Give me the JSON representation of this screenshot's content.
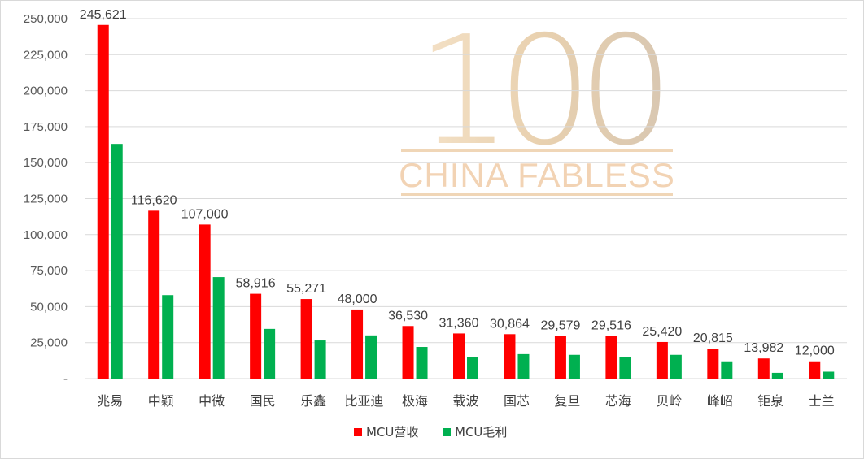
{
  "watermark": {
    "number": "100",
    "text": "CHINA FABLESS"
  },
  "colors": {
    "revenue": "#ff0000",
    "gross_profit": "#00b050",
    "grid": "#d9d9d9",
    "watermark_gold": "#e8c9a0"
  },
  "chart_data": {
    "type": "bar",
    "title": "",
    "xlabel": "",
    "ylabel": "",
    "ylim": [
      0,
      250000
    ],
    "yticks": [
      0,
      25000,
      50000,
      75000,
      100000,
      125000,
      150000,
      175000,
      200000,
      225000,
      250000
    ],
    "ytick_labels": [
      "-",
      "25,000",
      "50,000",
      "75,000",
      "100,000",
      "125,000",
      "150,000",
      "175,000",
      "200,000",
      "225,000",
      "250,000"
    ],
    "grid": true,
    "legend_position": "bottom",
    "categories": [
      "兆易",
      "中颖",
      "中微",
      "国民",
      "乐鑫",
      "比亚迪",
      "极海",
      "载波",
      "国芯",
      "复旦",
      "芯海",
      "贝岭",
      "峰岹",
      "钜泉",
      "士兰"
    ],
    "series": [
      {
        "name": "MCU营收",
        "values": [
          245621,
          116620,
          107000,
          58916,
          55271,
          48000,
          36530,
          31360,
          30864,
          29579,
          29516,
          25420,
          20815,
          13982,
          12000
        ],
        "labels": [
          "245,621",
          "116,620",
          "107,000",
          "58,916",
          "55,271",
          "48,000",
          "36,530",
          "31,360",
          "30,864",
          "29,579",
          "29,516",
          "25,420",
          "20,815",
          "13,982",
          "12,000"
        ]
      },
      {
        "name": "MCU毛利",
        "values": [
          163000,
          58000,
          70500,
          34500,
          26500,
          30000,
          22000,
          15000,
          17000,
          16500,
          15000,
          16500,
          12000,
          4000,
          4800
        ]
      }
    ]
  }
}
